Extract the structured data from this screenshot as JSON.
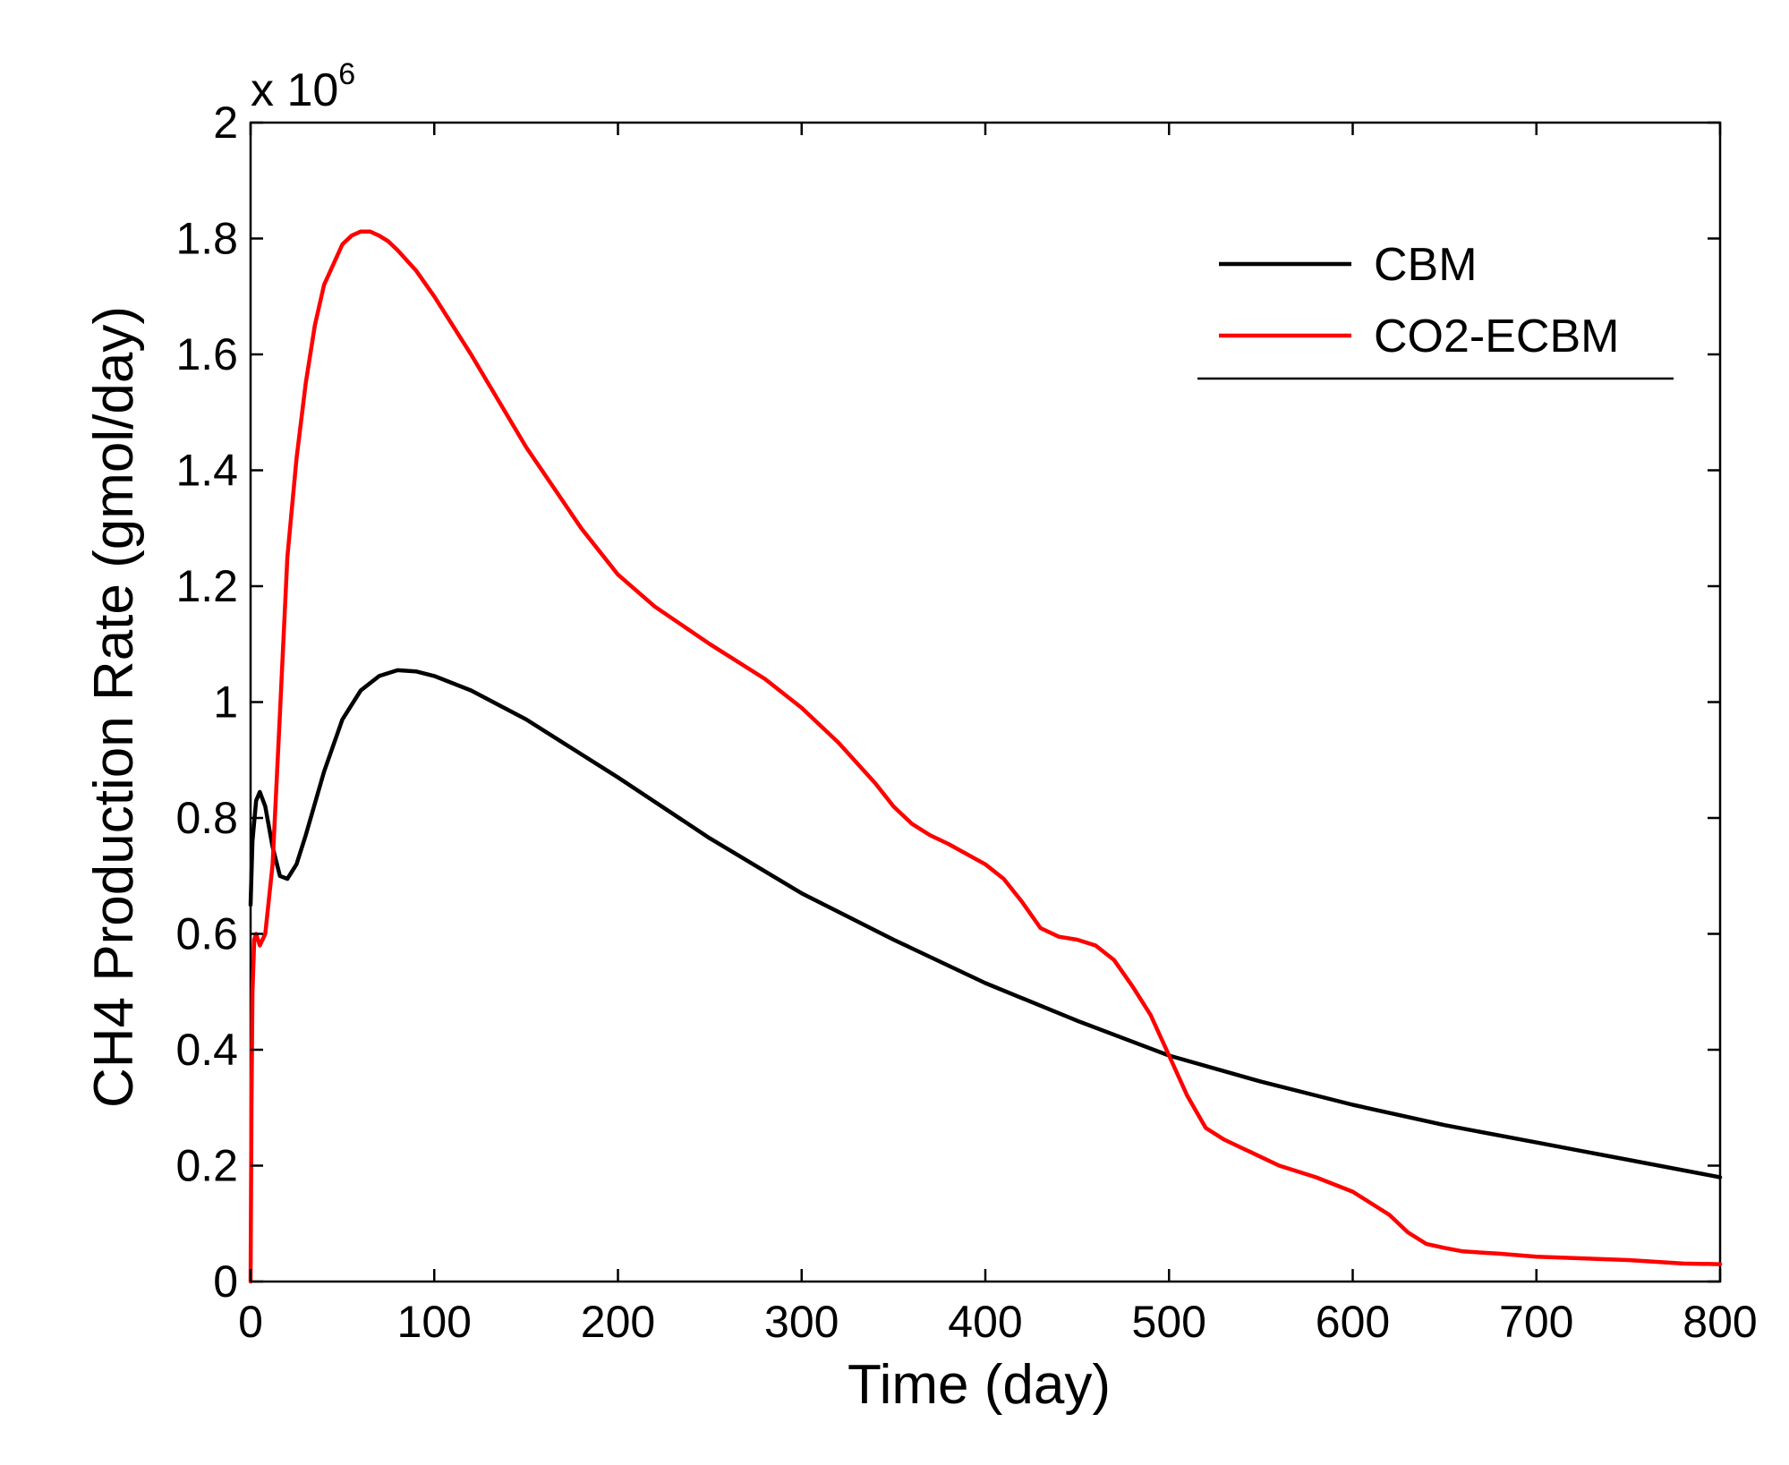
{
  "chart_data": {
    "type": "line",
    "title": "",
    "xlabel": "Time (day)",
    "ylabel": "CH4 Production Rate (gmol/day)",
    "y_multiplier_label": "x 10",
    "y_multiplier_exponent": "6",
    "xlim": [
      0,
      800
    ],
    "ylim": [
      0,
      2
    ],
    "x_ticks": [
      0,
      100,
      200,
      300,
      400,
      500,
      600,
      700,
      800
    ],
    "x_tick_labels": [
      "0",
      "100",
      "200",
      "300",
      "400",
      "500",
      "600",
      "700",
      "800"
    ],
    "y_ticks": [
      0,
      0.2,
      0.4,
      0.6,
      0.8,
      1,
      1.2,
      1.4,
      1.6,
      1.8,
      2
    ],
    "y_tick_labels": [
      "0",
      "0.2",
      "0.4",
      "0.6",
      "0.8",
      "1",
      "1.2",
      "1.4",
      "1.6",
      "1.8",
      "2"
    ],
    "grid": false,
    "legend": {
      "position": "top-right"
    },
    "series": [
      {
        "name": "CBM",
        "color": "#000000",
        "x": [
          0,
          1,
          3,
          5,
          8,
          12,
          16,
          20,
          25,
          30,
          40,
          50,
          60,
          70,
          80,
          90,
          100,
          120,
          150,
          200,
          250,
          300,
          350,
          400,
          450,
          500,
          550,
          600,
          650,
          700,
          750,
          800
        ],
        "y": [
          0.65,
          0.76,
          0.83,
          0.845,
          0.82,
          0.75,
          0.7,
          0.695,
          0.72,
          0.77,
          0.88,
          0.97,
          1.02,
          1.045,
          1.055,
          1.053,
          1.045,
          1.02,
          0.97,
          0.87,
          0.765,
          0.67,
          0.59,
          0.515,
          0.45,
          0.39,
          0.345,
          0.305,
          0.27,
          0.24,
          0.21,
          0.18
        ]
      },
      {
        "name": "CO2-ECBM",
        "color": "#ff0000",
        "x": [
          0,
          0.5,
          1,
          2,
          3,
          5,
          8,
          12,
          16,
          20,
          25,
          30,
          35,
          40,
          50,
          55,
          60,
          65,
          70,
          75,
          80,
          90,
          100,
          120,
          150,
          180,
          200,
          220,
          250,
          280,
          300,
          320,
          340,
          350,
          360,
          370,
          380,
          400,
          410,
          420,
          430,
          440,
          450,
          460,
          470,
          480,
          490,
          500,
          510,
          520,
          530,
          540,
          550,
          560,
          580,
          600,
          620,
          630,
          640,
          650,
          660,
          680,
          700,
          750,
          780,
          800
        ],
        "y": [
          0.0,
          0.3,
          0.5,
          0.59,
          0.6,
          0.58,
          0.6,
          0.72,
          0.98,
          1.25,
          1.42,
          1.55,
          1.65,
          1.72,
          1.79,
          1.805,
          1.812,
          1.812,
          1.805,
          1.795,
          1.78,
          1.745,
          1.7,
          1.6,
          1.44,
          1.3,
          1.22,
          1.165,
          1.1,
          1.04,
          0.99,
          0.93,
          0.86,
          0.82,
          0.79,
          0.77,
          0.755,
          0.72,
          0.695,
          0.655,
          0.61,
          0.595,
          0.59,
          0.58,
          0.555,
          0.51,
          0.46,
          0.39,
          0.32,
          0.265,
          0.245,
          0.23,
          0.215,
          0.2,
          0.18,
          0.155,
          0.115,
          0.085,
          0.065,
          0.058,
          0.052,
          0.048,
          0.043,
          0.037,
          0.031,
          0.03
        ]
      }
    ]
  }
}
